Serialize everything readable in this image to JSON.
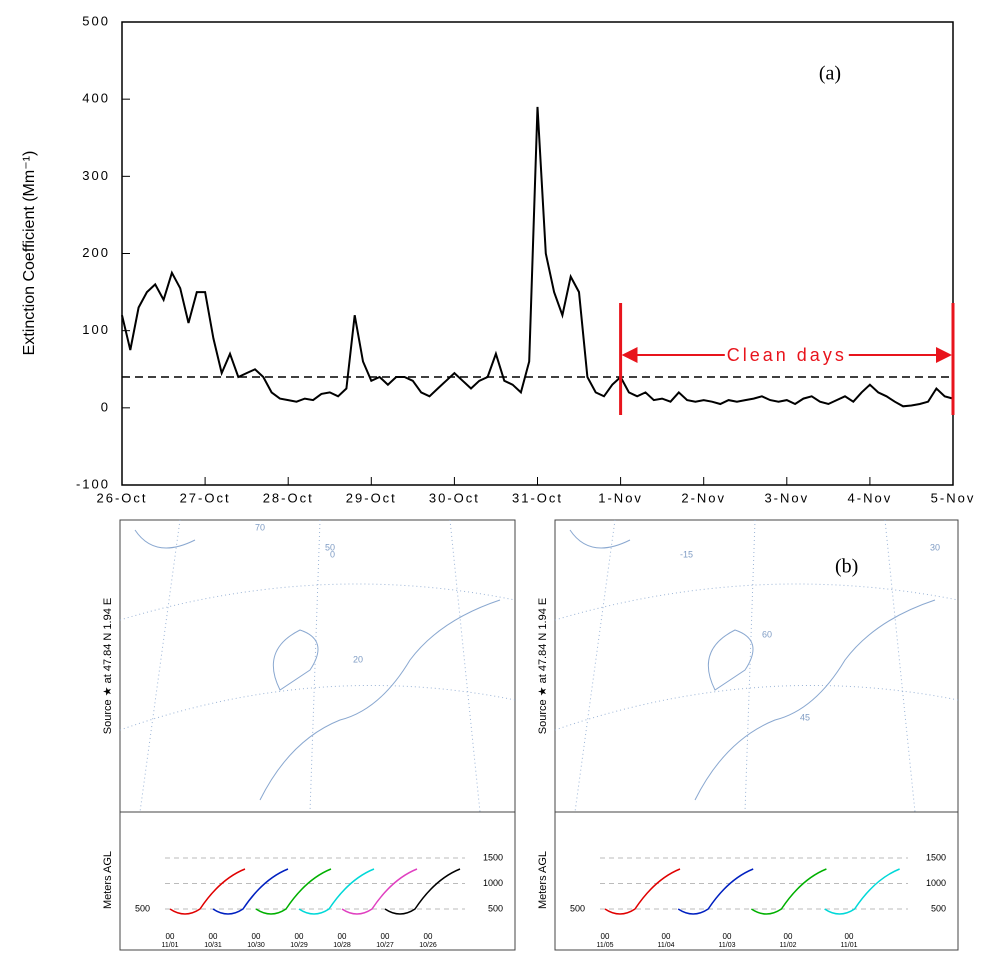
{
  "chart_data": {
    "type": "line",
    "ylabel": "Extinction Coefficient (Mm⁻¹)",
    "annotation": "(a)",
    "ylim": [
      -100,
      500
    ],
    "yticks": [
      -100,
      0,
      100,
      200,
      300,
      400,
      500
    ],
    "xlim": [
      0,
      10
    ],
    "xticks": [
      {
        "value": 0,
        "label": "26-Oct"
      },
      {
        "value": 1,
        "label": "27-Oct"
      },
      {
        "value": 2,
        "label": "28-Oct"
      },
      {
        "value": 3,
        "label": "29-Oct"
      },
      {
        "value": 4,
        "label": "30-Oct"
      },
      {
        "value": 5,
        "label": "31-Oct"
      },
      {
        "value": 6,
        "label": "1-Nov"
      },
      {
        "value": 7,
        "label": "2-Nov"
      },
      {
        "value": 8,
        "label": "3-Nov"
      },
      {
        "value": 9,
        "label": "4-Nov"
      },
      {
        "value": 10,
        "label": "5-Nov"
      }
    ],
    "threshold": 40,
    "clean_days": {
      "label": "Clean days",
      "xrange": [
        6,
        10
      ],
      "color": "#e8141c"
    },
    "x": [
      0,
      0.1,
      0.2,
      0.3,
      0.4,
      0.5,
      0.6,
      0.7,
      0.8,
      0.9,
      1,
      1.1,
      1.2,
      1.3,
      1.4,
      1.5,
      1.6,
      1.7,
      1.8,
      1.9,
      2,
      2.1,
      2.2,
      2.3,
      2.4,
      2.5,
      2.6,
      2.7,
      2.8,
      2.9,
      3,
      3.1,
      3.2,
      3.3,
      3.4,
      3.5,
      3.6,
      3.7,
      3.8,
      3.9,
      4,
      4.1,
      4.2,
      4.3,
      4.4,
      4.5,
      4.6,
      4.7,
      4.8,
      4.9,
      5,
      5.1,
      5.2,
      5.3,
      5.4,
      5.5,
      5.6,
      5.7,
      5.8,
      5.9,
      6,
      6.1,
      6.2,
      6.3,
      6.4,
      6.5,
      6.6,
      6.7,
      6.8,
      6.9,
      7,
      7.1,
      7.2,
      7.3,
      7.4,
      7.5,
      7.6,
      7.7,
      7.8,
      7.9,
      8,
      8.1,
      8.2,
      8.3,
      8.4,
      8.5,
      8.6,
      8.7,
      8.8,
      8.9,
      9,
      9.1,
      9.2,
      9.3,
      9.4,
      9.5,
      9.6,
      9.7,
      9.8,
      9.9,
      10
    ],
    "series": [
      {
        "color": "#000000",
        "values": [
          120,
          75,
          130,
          150,
          160,
          140,
          175,
          155,
          110,
          150,
          150,
          90,
          45,
          70,
          40,
          45,
          50,
          40,
          20,
          12,
          10,
          8,
          12,
          10,
          18,
          20,
          15,
          25,
          120,
          60,
          35,
          40,
          30,
          40,
          40,
          35,
          20,
          15,
          25,
          35,
          45,
          35,
          25,
          35,
          40,
          70,
          35,
          30,
          20,
          60,
          390,
          200,
          150,
          120,
          170,
          150,
          40,
          20,
          15,
          30,
          40,
          20,
          15,
          20,
          10,
          12,
          8,
          20,
          10,
          8,
          10,
          8,
          5,
          10,
          8,
          10,
          12,
          15,
          10,
          8,
          10,
          5,
          12,
          15,
          8,
          5,
          10,
          15,
          8,
          20,
          30,
          20,
          15,
          8,
          2,
          3,
          5,
          8,
          25,
          15,
          12
        ]
      }
    ]
  },
  "panels": [
    {
      "source_label": "Source ★ at  47.84 N  1.94 E",
      "height_label": "Meters AGL",
      "height_ticks": [
        1500,
        1000,
        500
      ],
      "left_tick": "500",
      "grid_labels": [
        "70",
        "50",
        "20",
        "0"
      ],
      "time_labels": [
        {
          "hour": "00",
          "date": "11/01"
        },
        {
          "hour": "00",
          "date": "10/31"
        },
        {
          "hour": "00",
          "date": "10/30"
        },
        {
          "hour": "00",
          "date": "10/29"
        },
        {
          "hour": "00",
          "date": "10/28"
        },
        {
          "hour": "00",
          "date": "10/27"
        },
        {
          "hour": "00",
          "date": "10/26"
        }
      ]
    },
    {
      "annotation": "(b)",
      "source_label": "Source ★ at  47.84 N  1.94 E",
      "height_label": "Meters AGL",
      "height_ticks": [
        1500,
        1000,
        500
      ],
      "left_tick": "500",
      "grid_labels": [
        "-15",
        "60",
        "45",
        "30"
      ],
      "time_labels": [
        {
          "hour": "00",
          "date": "11/05"
        },
        {
          "hour": "00",
          "date": "11/04"
        },
        {
          "hour": "00",
          "date": "11/03"
        },
        {
          "hour": "00",
          "date": "11/02"
        },
        {
          "hour": "00",
          "date": "11/01"
        }
      ]
    }
  ]
}
